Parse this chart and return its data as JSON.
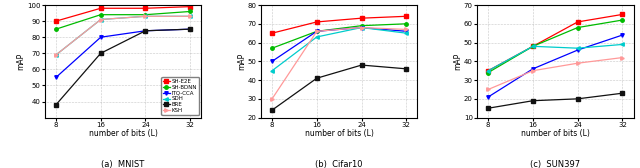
{
  "x": [
    8,
    16,
    24,
    32
  ],
  "mnist": {
    "SH-E2E": [
      90,
      98,
      98,
      99
    ],
    "SH-BDNN": [
      85,
      94,
      94,
      96
    ],
    "ITQ-CCA": [
      55,
      80,
      84,
      85
    ],
    "SDH": [
      69,
      91,
      93,
      93
    ],
    "BRE": [
      38,
      70,
      84,
      85
    ],
    "KSH": [
      69,
      91,
      93,
      93
    ]
  },
  "cifar10": {
    "SH-E2E": [
      65,
      71,
      73,
      74
    ],
    "SH-BDNN": [
      57,
      66,
      69,
      70
    ],
    "ITQ-CCA": [
      50,
      66,
      68,
      66
    ],
    "SDH": [
      45,
      63,
      68,
      65
    ],
    "BRE": [
      24,
      41,
      48,
      46
    ],
    "KSH": [
      30,
      66,
      68,
      67
    ]
  },
  "sun397": {
    "SH-E2E": [
      35,
      48,
      61,
      65
    ],
    "SH-BDNN": [
      34,
      48,
      58,
      62
    ],
    "ITQ-CCA": [
      21,
      36,
      46,
      54
    ],
    "SDH": [
      35,
      48,
      47,
      49
    ],
    "BRE": [
      15,
      19,
      20,
      23
    ],
    "KSH": [
      25,
      35,
      39,
      42
    ]
  },
  "colors": {
    "SH-E2E": "#ff0000",
    "SH-BDNN": "#00bb00",
    "ITQ-CCA": "#0000ff",
    "SDH": "#00cccc",
    "BRE": "#111111",
    "KSH": "#ff9999"
  },
  "markers": {
    "SH-E2E": "s",
    "SH-BDNN": "o",
    "ITQ-CCA": "v",
    "SDH": "<",
    "BRE": "s",
    "KSH": ">"
  },
  "ylim_mnist": [
    30,
    100
  ],
  "ylim_cifar": [
    20,
    80
  ],
  "ylim_sun": [
    10,
    70
  ],
  "yticks_mnist": [
    40,
    50,
    60,
    70,
    80,
    90,
    100
  ],
  "yticks_cifar": [
    20,
    30,
    40,
    50,
    60,
    70,
    80
  ],
  "yticks_sun": [
    10,
    20,
    30,
    40,
    50,
    60,
    70
  ],
  "subtitles": [
    "(a)  MNIST",
    "(b)  Cifar10",
    "(c)  SUN397"
  ],
  "xlabel": "number of bits (L)",
  "ylabel": "mAP",
  "legend_order": [
    "SH-E2E",
    "SH-BDNN",
    "ITQ-CCA",
    "SDH",
    "BRE",
    "KSH"
  ]
}
